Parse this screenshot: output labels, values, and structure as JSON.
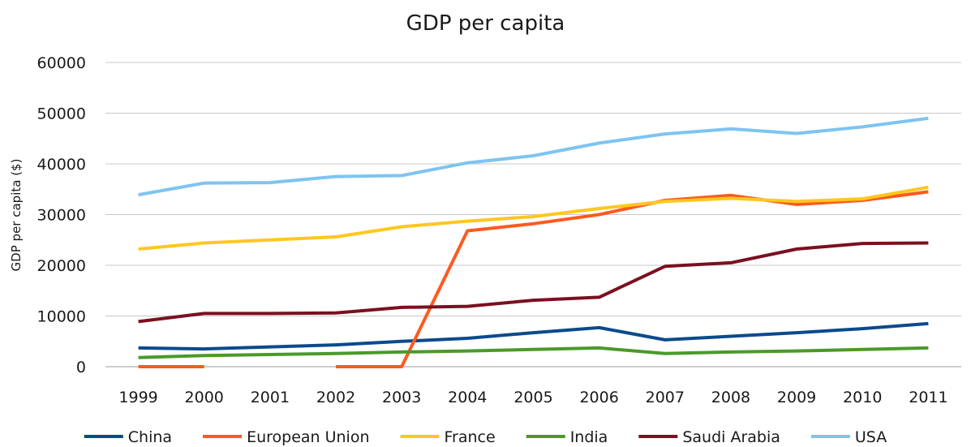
{
  "chart_data": {
    "type": "line",
    "title": "GDP per capita",
    "xlabel": "",
    "ylabel": "GDP per capita ($)",
    "ylim": [
      0,
      60000
    ],
    "yticks": [
      0,
      10000,
      20000,
      30000,
      40000,
      50000,
      60000
    ],
    "grid": "horizontal",
    "legend_position": "bottom",
    "categories": [
      "1999",
      "2000",
      "2001",
      "2002",
      "2003",
      "2004",
      "2005",
      "2006",
      "2007",
      "2008",
      "2009",
      "2010",
      "2011"
    ],
    "series": [
      {
        "name": "China",
        "color": "#0b4a8c",
        "values": [
          3700,
          3500,
          3900,
          4300,
          5000,
          5600,
          6700,
          7700,
          5300,
          6000,
          6700,
          7500,
          8500
        ]
      },
      {
        "name": "European Union",
        "color": "#ff5a1f",
        "values": [
          0,
          0,
          null,
          0,
          0,
          26800,
          28200,
          30000,
          32800,
          33800,
          32000,
          32800,
          34500
        ]
      },
      {
        "name": "France",
        "color": "#ffc71f",
        "values": [
          23200,
          24400,
          25000,
          25600,
          27600,
          28700,
          29600,
          31200,
          32600,
          33200,
          32600,
          33100,
          35400
        ]
      },
      {
        "name": "India",
        "color": "#4a9a2a",
        "values": [
          1800,
          2200,
          2400,
          2600,
          2900,
          3100,
          3400,
          3700,
          2600,
          2900,
          3100,
          3400,
          3700
        ]
      },
      {
        "name": "Saudi Arabia",
        "color": "#7a1020",
        "values": [
          8900,
          10500,
          10500,
          10600,
          11700,
          11900,
          13100,
          13700,
          19800,
          20500,
          23200,
          24300,
          24400
        ]
      },
      {
        "name": "USA",
        "color": "#7ec4f0",
        "values": [
          33900,
          36200,
          36300,
          37500,
          37700,
          40200,
          41600,
          44100,
          45900,
          46900,
          46000,
          47300,
          49000
        ]
      }
    ]
  }
}
